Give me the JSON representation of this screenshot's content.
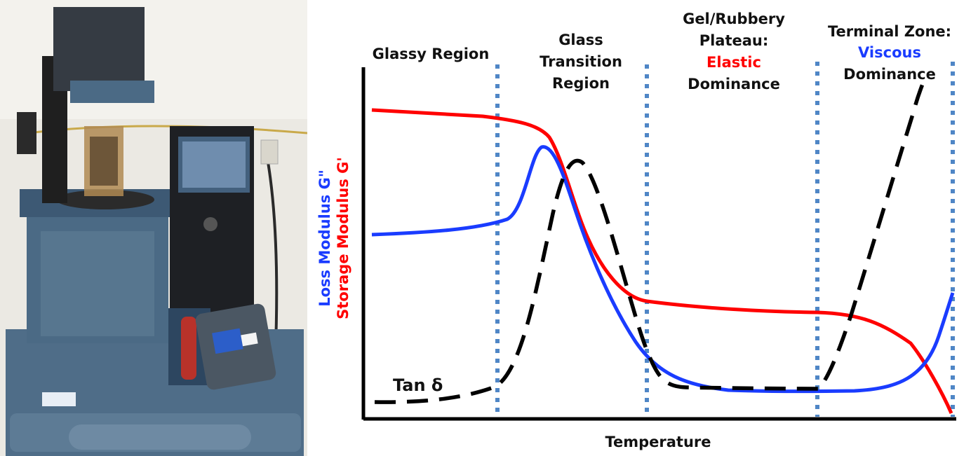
{
  "photo": {
    "caption": "",
    "colors": {
      "wall": "#e9e7e0",
      "instrument": "#4e6d88",
      "instrument_dark": "#2f4458",
      "screen": "#3c5674",
      "panel": "#1d1f22"
    }
  },
  "diagram": {
    "regions": {
      "glassy": [
        "Glassy Region"
      ],
      "transition": [
        "Glass",
        "Transition",
        "Region"
      ],
      "plateau": {
        "line1": "Gel/Rubbery",
        "line2": "Plateau:",
        "line3_emph": "Elastic",
        "line4": "Dominance"
      },
      "terminal": {
        "line1": "Terminal Zone:",
        "line2_emph": "Viscous",
        "line3": "Dominance"
      }
    },
    "y_label_storage": "Storage Modulus G'",
    "y_label_loss": "Loss Modulus G\"",
    "x_label": "Temperature",
    "tan_label": "Tan δ",
    "colors": {
      "storage": "#ff0000",
      "loss": "#1a3cff",
      "tan": "#000000",
      "divider": "#4f86c6",
      "axis": "#000000"
    }
  }
}
